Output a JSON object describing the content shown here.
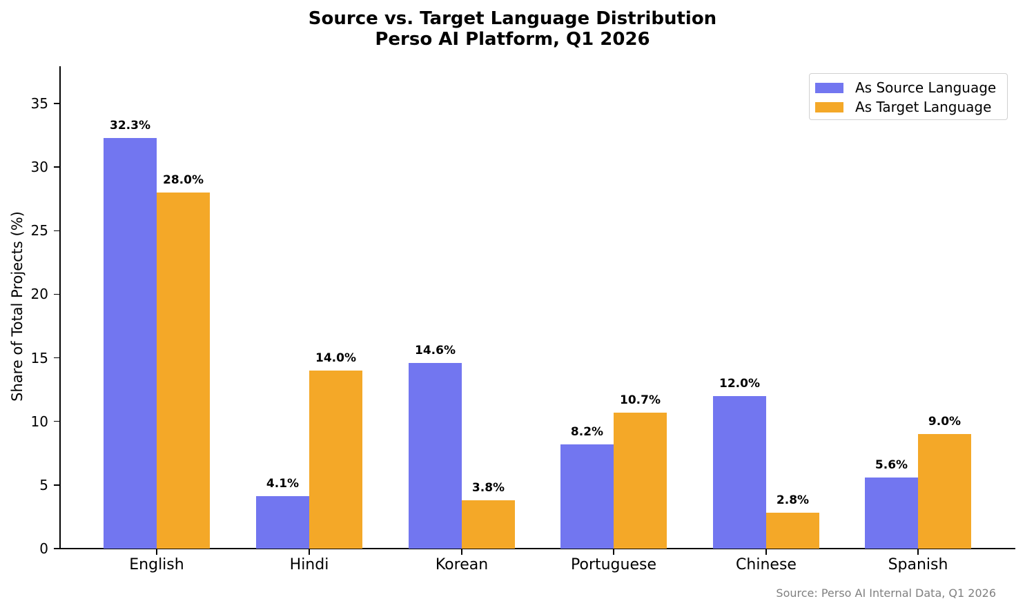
{
  "chart_data": {
    "type": "bar",
    "title": "Source vs. Target Language Distribution",
    "subtitle": "Perso AI Platform, Q1 2026",
    "xlabel": "",
    "ylabel": "Share of Total Projects (%)",
    "categories": [
      "English",
      "Hindi",
      "Korean",
      "Portuguese",
      "Chinese",
      "Spanish"
    ],
    "series": [
      {
        "name": "As Source Language",
        "color": "#7276f0",
        "values": [
          32.3,
          4.1,
          14.6,
          8.2,
          12.0,
          5.6
        ],
        "labels": [
          "32.3%",
          "4.1%",
          "14.6%",
          "8.2%",
          "12.0%",
          "5.6%"
        ]
      },
      {
        "name": "As Target Language",
        "color": "#f4a828",
        "values": [
          28.0,
          14.0,
          3.8,
          10.7,
          2.8,
          9.0
        ],
        "labels": [
          "28.0%",
          "14.0%",
          "3.8%",
          "10.7%",
          "2.8%",
          "9.0%"
        ]
      }
    ],
    "yticks": [
      "0",
      "5",
      "10",
      "15",
      "20",
      "25",
      "30",
      "35"
    ],
    "ylim": [
      0,
      38
    ],
    "grid": false,
    "legend_position": "upper right",
    "annotation": "Source: Perso AI Internal Data, Q1 2026"
  }
}
